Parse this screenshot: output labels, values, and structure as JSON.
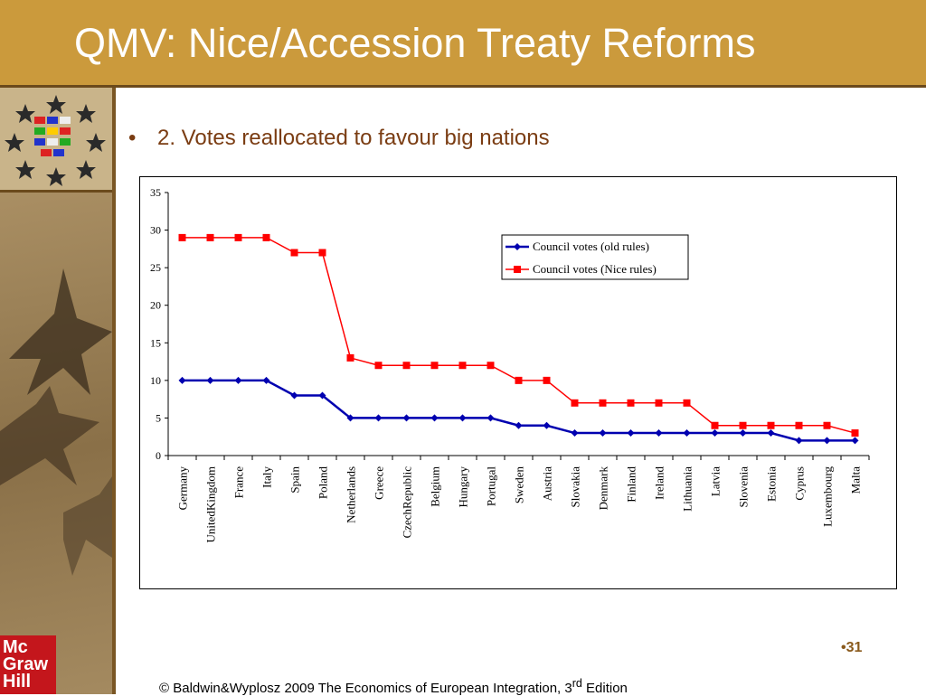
{
  "slide": {
    "title": "QMV: Nice/Accession Treaty Reforms",
    "bullet_marker": "•",
    "bullet": "2. Votes reallocated to favour big nations",
    "page_number": "•31",
    "footer": "© Baldwin&Wyplosz 2009 The Economics of European Integration, 3",
    "footer_sup": "rd",
    "footer_end": " Edition",
    "logo_lines": [
      "Mc",
      "Graw",
      "Hill"
    ]
  },
  "colors": {
    "title_bar": "#cb9a3c",
    "old_rules": "#0000b0",
    "nice_rules": "#ff0000"
  },
  "chart_data": {
    "type": "line",
    "categories": [
      "Germany",
      "UnitedKingdom",
      "France",
      "Italy",
      "Spain",
      "Poland",
      "Netherlands",
      "Greece",
      "CzechRepublic",
      "Belgium",
      "Hungary",
      "Portugal",
      "Sweden",
      "Austria",
      "Slovakia",
      "Denmark",
      "Finland",
      "Ireland",
      "Lithuania",
      "Latvia",
      "Slovenia",
      "Estonia",
      "Cyprus",
      "Luxembourg",
      "Malta"
    ],
    "series": [
      {
        "name": "Council votes (old rules)",
        "values": [
          10,
          10,
          10,
          10,
          8,
          8,
          5,
          5,
          5,
          5,
          5,
          5,
          4,
          4,
          3,
          3,
          3,
          3,
          3,
          3,
          3,
          3,
          2,
          2,
          2
        ]
      },
      {
        "name": "Council votes (Nice rules)",
        "values": [
          29,
          29,
          29,
          29,
          27,
          27,
          13,
          12,
          12,
          12,
          12,
          12,
          10,
          10,
          7,
          7,
          7,
          7,
          7,
          4,
          4,
          4,
          4,
          4,
          3
        ]
      }
    ],
    "ylim": [
      0,
      35
    ],
    "yticks": [
      "0",
      "5",
      "10",
      "15",
      "20",
      "25",
      "30",
      "35"
    ],
    "legend_position": "top-right",
    "grid": false
  }
}
